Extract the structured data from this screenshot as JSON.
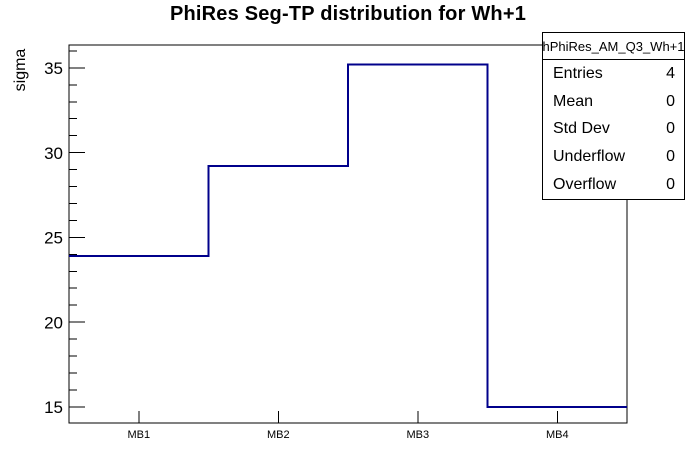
{
  "colors": {
    "background": "#ffffff",
    "axis": "#000000",
    "text": "#000000",
    "histogram_line": "#00008b"
  },
  "chart_data": {
    "type": "bar",
    "draw_style": "step-outline-histogram",
    "title": "PhiRes Seg-TP distribution for Wh+1",
    "xlabel": "",
    "ylabel": "sigma",
    "categories": [
      "MB1",
      "MB2",
      "MB3",
      "MB4"
    ],
    "values": [
      23.9,
      29.2,
      35.2,
      15.0
    ],
    "ylim": [
      14.05,
      36.35
    ],
    "y_major_ticks": [
      15,
      20,
      25,
      30,
      35
    ],
    "y_minor_tick_step": 1,
    "grid": false,
    "legend": false,
    "line_color": "#00008b"
  },
  "stats_box": {
    "title": "hPhiRes_AM_Q3_Wh+1",
    "rows": [
      {
        "label": "Entries",
        "value": "4"
      },
      {
        "label": "Mean",
        "value": "0"
      },
      {
        "label": "Std Dev",
        "value": "0"
      },
      {
        "label": "Underflow",
        "value": "0"
      },
      {
        "label": "Overflow",
        "value": "0"
      }
    ]
  }
}
